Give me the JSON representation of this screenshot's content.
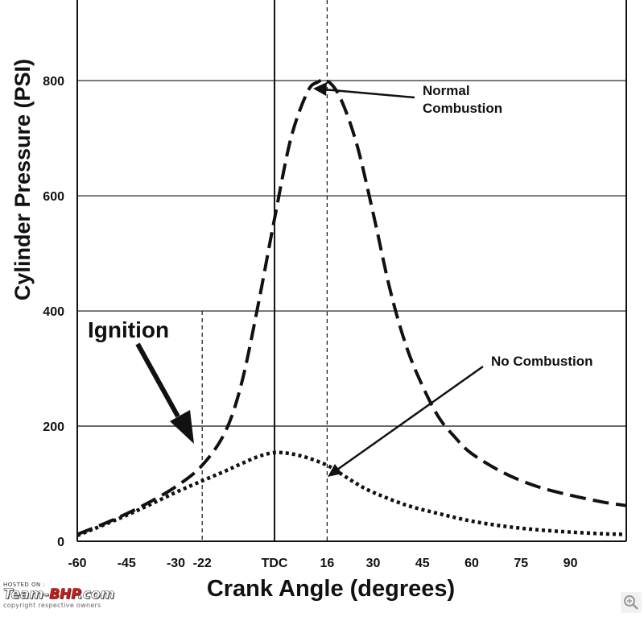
{
  "chart_data": {
    "type": "line",
    "xlabel": "Crank Angle (degrees)",
    "ylabel": "Cylinder Pressure (PSI)",
    "xlim": [
      -60,
      107
    ],
    "ylim": [
      0,
      940
    ],
    "x_ticks": [
      {
        "value": -60,
        "label": "-60"
      },
      {
        "value": -45,
        "label": "-45"
      },
      {
        "value": -30,
        "label": "-30"
      },
      {
        "value": -22,
        "label": "-22"
      },
      {
        "value": 0,
        "label": "TDC"
      },
      {
        "value": 16,
        "label": "16"
      },
      {
        "value": 30,
        "label": "30"
      },
      {
        "value": 45,
        "label": "45"
      },
      {
        "value": 60,
        "label": "60"
      },
      {
        "value": 75,
        "label": "75"
      },
      {
        "value": 90,
        "label": "90"
      }
    ],
    "y_ticks": [
      0,
      200,
      400,
      600,
      800
    ],
    "grid": "horizontal",
    "series": [
      {
        "name": "Normal Combustion",
        "style": "dashed",
        "x": [
          -60,
          -50,
          -40,
          -30,
          -22,
          -15,
          -10,
          -5,
          0,
          5,
          10,
          13,
          16,
          20,
          25,
          30,
          35,
          40,
          45,
          50,
          55,
          60,
          70,
          80,
          90,
          100,
          107
        ],
        "y": [
          12,
          35,
          62,
          95,
          132,
          190,
          275,
          410,
          560,
          700,
          780,
          797,
          800,
          770,
          690,
          570,
          440,
          340,
          270,
          215,
          180,
          152,
          118,
          95,
          80,
          68,
          62
        ]
      },
      {
        "name": "No Combustion",
        "style": "dotted",
        "x": [
          -60,
          -50,
          -40,
          -30,
          -22,
          -15,
          -10,
          -5,
          0,
          5,
          10,
          16,
          20,
          25,
          30,
          40,
          50,
          60,
          70,
          80,
          90,
          100,
          107
        ],
        "y": [
          10,
          33,
          58,
          85,
          105,
          122,
          135,
          147,
          154,
          152,
          145,
          132,
          118,
          100,
          85,
          63,
          48,
          35,
          26,
          20,
          16,
          13,
          12
        ]
      }
    ],
    "reference_lines": [
      {
        "x": -22,
        "style": "dashed",
        "y_top": 400
      },
      {
        "x": 0,
        "style": "solid"
      },
      {
        "x": 16,
        "style": "dashed"
      }
    ],
    "annotations": [
      {
        "id": "ignition",
        "text": "Ignition",
        "points_to": {
          "x": -22,
          "y": 130
        }
      },
      {
        "id": "normal",
        "lines": [
          "Normal",
          "Combustion"
        ],
        "points_to": {
          "x": 16,
          "y": 800
        }
      },
      {
        "id": "none",
        "text": "No Combustion",
        "points_to": {
          "x": 22,
          "y": 108
        }
      }
    ]
  },
  "watermark": {
    "hosted": "HOSTED ON :",
    "logo_a": "Team-",
    "logo_b": "BHP",
    "logo_c": ".com",
    "copyright": "copyright respective owners"
  },
  "icons": {
    "zoom": "magnifier-icon"
  }
}
